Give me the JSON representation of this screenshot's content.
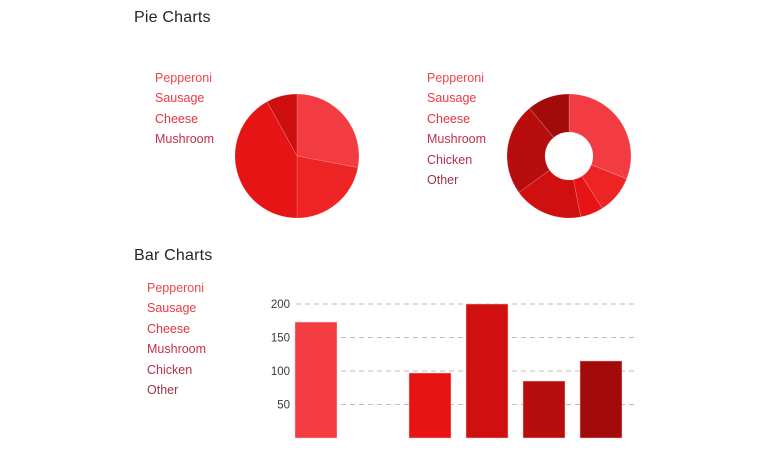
{
  "sections": {
    "pie_title": "Pie Charts",
    "bar_title": "Bar Charts"
  },
  "pie_chart": {
    "legend": [
      {
        "label": "Pepperoni",
        "color": "#f0454f"
      },
      {
        "label": "Sausage",
        "color": "#ea3a47"
      },
      {
        "label": "Cheese",
        "color": "#e2333f"
      },
      {
        "label": "Mushroom",
        "color": "#c4304a"
      }
    ]
  },
  "donut_chart": {
    "legend": [
      {
        "label": "Pepperoni",
        "color": "#f0454f"
      },
      {
        "label": "Sausage",
        "color": "#ea3a47"
      },
      {
        "label": "Cheese",
        "color": "#e2333f"
      },
      {
        "label": "Mushroom",
        "color": "#c4304a"
      },
      {
        "label": "Chicken",
        "color": "#b3304a"
      },
      {
        "label": "Other",
        "color": "#9e3347"
      }
    ]
  },
  "bar_chart": {
    "legend": [
      {
        "label": "Pepperoni",
        "color": "#f0454f"
      },
      {
        "label": "Sausage",
        "color": "#ea3a47"
      },
      {
        "label": "Cheese",
        "color": "#e2333f"
      },
      {
        "label": "Mushroom",
        "color": "#c4304a"
      },
      {
        "label": "Chicken",
        "color": "#b3304a"
      },
      {
        "label": "Other",
        "color": "#9e3347"
      }
    ],
    "y_ticks": [
      "200",
      "150",
      "100",
      "50"
    ]
  },
  "chart_data": [
    {
      "type": "pie",
      "title": "Pie Charts",
      "categories": [
        "Pepperoni",
        "Sausage",
        "Cheese",
        "Mushroom"
      ],
      "values": [
        28,
        22,
        42,
        8
      ],
      "colors": [
        "#f23c41",
        "#ee2323",
        "#e61414",
        "#cd0f0f"
      ],
      "legend_position": "left"
    },
    {
      "type": "pie",
      "subtype": "donut",
      "categories": [
        "Pepperoni",
        "Sausage",
        "Cheese",
        "Mushroom",
        "Chicken",
        "Other"
      ],
      "values": [
        31,
        10,
        6,
        18,
        24,
        11
      ],
      "colors": [
        "#f23c41",
        "#ee2323",
        "#e61414",
        "#d01010",
        "#b80d0d",
        "#a30a0a"
      ],
      "legend_position": "left"
    },
    {
      "type": "bar",
      "title": "Bar Charts",
      "categories": [
        "Pepperoni",
        "Sausage",
        "Cheese",
        "Mushroom",
        "Chicken",
        "Other"
      ],
      "values": [
        173,
        0,
        97,
        200,
        85,
        115
      ],
      "colors": [
        "#f23c41",
        "#ee2323",
        "#e61414",
        "#d01010",
        "#b80d0d",
        "#a30a0a"
      ],
      "xlabel": "",
      "ylabel": "",
      "y_ticks": [
        50,
        100,
        150,
        200
      ],
      "grid": "dashed horizontal",
      "legend_position": "left"
    }
  ]
}
